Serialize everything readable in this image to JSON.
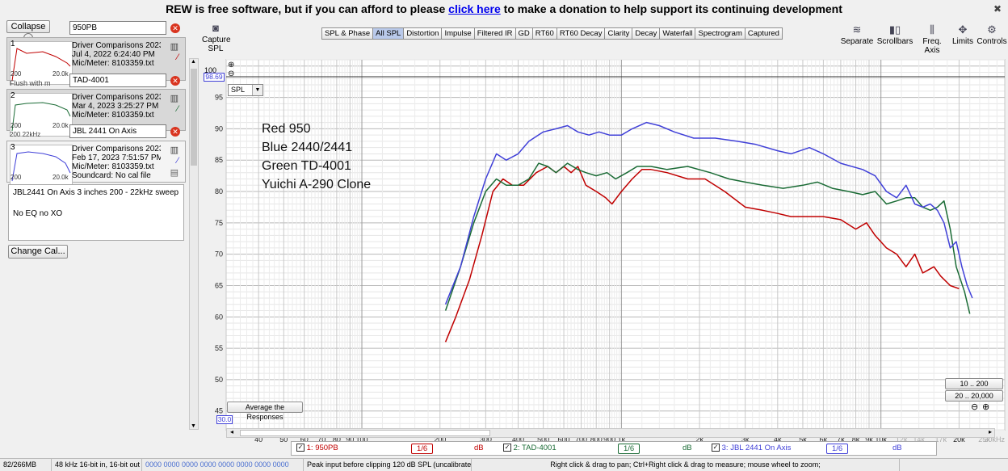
{
  "banner": {
    "prefix": "REW is free software, but if you can afford to please ",
    "link": "click here",
    "suffix": " to make a donation to help support its continuing development",
    "close": "✖"
  },
  "left": {
    "collapse_label": "Collapse",
    "collapse_icon": "«",
    "measurements": [
      {
        "num": "1",
        "name": "950PB",
        "line1": "Driver Comparisons 20230330.r",
        "line2": "Jul 4, 2022 6:24:40 PM",
        "line3": "Mic/Meter: 8103359.txt",
        "tick_lo": "200",
        "tick_hi": "20.0k",
        "color": "#c00000"
      },
      {
        "num": "2",
        "name": "TAD-4001",
        "line1": "Driver Comparisons 20230330.r",
        "line2": "Mar 4, 2023 3:25:27 PM",
        "line3": "Mic/Meter: 8103359.txt",
        "tick_lo": "200",
        "tick_hi": "20.0k",
        "color": "#1a6b35"
      },
      {
        "num": "3",
        "name": "JBL 2441 On Axis",
        "line1": "Driver Comparisons 20230330.r",
        "line2": "Feb 17, 2023 7:51:57 PM",
        "line3": "Mic/Meter: 8103359.txt",
        "line4": "Soundcard: No cal file",
        "tick_lo": "200",
        "tick_hi": "20.0k",
        "color": "#4040d8"
      }
    ],
    "hidden_peek_1": "Flush with m",
    "hidden_peek_2": "200  22kHz",
    "notes_line1": "JBL2441 On Axis 3 inches 200 - 22kHz sweep",
    "notes_line2": "No EQ no XO",
    "change_cal": "Change Cal..."
  },
  "toolbar": {
    "capture_label": "Capture",
    "spl_label": "SPL",
    "tabs": [
      "SPL & Phase",
      "All SPL",
      "Distortion",
      "Impulse",
      "Filtered IR",
      "GD",
      "RT60",
      "RT60 Decay",
      "Clarity",
      "Decay",
      "Waterfall",
      "Spectrogram",
      "Captured"
    ],
    "active_tab": "All SPL",
    "right_buttons": [
      "Separate",
      "Scrollbars",
      "Freq. Axis",
      "Limits",
      "Controls"
    ]
  },
  "plot": {
    "y_top_label": "100",
    "cursor_value": "98.69",
    "mode_select": "SPL",
    "average_btn": "Average the Responses",
    "x_start_box": "30.0",
    "range_btn_1": "10 .. 200",
    "range_btn_2": "20 .. 20,000",
    "annotation": [
      "Red 950",
      "Blue 2440/2441",
      "Green TD-4001",
      "Yuichi A-290 Clone"
    ]
  },
  "chart_data": {
    "type": "line",
    "xscale": "log",
    "xlim": [
      30,
      30000
    ],
    "ylim": [
      42,
      101
    ],
    "yticks": [
      45,
      50,
      55,
      60,
      65,
      70,
      75,
      80,
      85,
      90,
      95,
      100
    ],
    "xticks": [
      {
        "v": 40,
        "l": "40"
      },
      {
        "v": 50,
        "l": "50"
      },
      {
        "v": 60,
        "l": "60"
      },
      {
        "v": 70,
        "l": "70"
      },
      {
        "v": 80,
        "l": "80"
      },
      {
        "v": 90,
        "l": "90"
      },
      {
        "v": 100,
        "l": "100"
      },
      {
        "v": 200,
        "l": "200"
      },
      {
        "v": 300,
        "l": "300"
      },
      {
        "v": 400,
        "l": "400"
      },
      {
        "v": 500,
        "l": "500"
      },
      {
        "v": 600,
        "l": "600"
      },
      {
        "v": 700,
        "l": "700"
      },
      {
        "v": 800,
        "l": "800"
      },
      {
        "v": 900,
        "l": "900"
      },
      {
        "v": 1000,
        "l": "1k"
      },
      {
        "v": 2000,
        "l": "2k"
      },
      {
        "v": 3000,
        "l": "3k"
      },
      {
        "v": 4000,
        "l": "4k"
      },
      {
        "v": 5000,
        "l": "5k"
      },
      {
        "v": 6000,
        "l": "6k"
      },
      {
        "v": 7000,
        "l": "7k"
      },
      {
        "v": 8000,
        "l": "8k"
      },
      {
        "v": 9000,
        "l": "9k"
      },
      {
        "v": 10000,
        "l": "10k"
      },
      {
        "v": 12000,
        "l": "12k"
      },
      {
        "v": 14000,
        "l": "14k"
      },
      {
        "v": 17000,
        "l": "17k"
      },
      {
        "v": 20000,
        "l": "20k"
      },
      {
        "v": 25000,
        "l": "25k"
      },
      {
        "v": 30000,
        "l": "30kHz"
      }
    ],
    "series": [
      {
        "name": "950PB",
        "color": "#c00000",
        "points": [
          [
            210,
            56
          ],
          [
            230,
            60
          ],
          [
            260,
            66
          ],
          [
            290,
            73
          ],
          [
            320,
            80
          ],
          [
            350,
            82
          ],
          [
            380,
            81
          ],
          [
            420,
            81
          ],
          [
            470,
            83
          ],
          [
            520,
            84
          ],
          [
            560,
            83
          ],
          [
            600,
            84
          ],
          [
            640,
            83
          ],
          [
            680,
            84
          ],
          [
            730,
            81
          ],
          [
            800,
            80
          ],
          [
            870,
            79
          ],
          [
            920,
            78
          ],
          [
            1000,
            80
          ],
          [
            1100,
            82
          ],
          [
            1200,
            83.5
          ],
          [
            1300,
            83.5
          ],
          [
            1500,
            83
          ],
          [
            1800,
            82
          ],
          [
            2100,
            82
          ],
          [
            2500,
            80
          ],
          [
            3000,
            77.5
          ],
          [
            3500,
            77
          ],
          [
            4000,
            76.5
          ],
          [
            4500,
            76
          ],
          [
            5000,
            76
          ],
          [
            6000,
            76
          ],
          [
            7000,
            75.5
          ],
          [
            8000,
            74
          ],
          [
            8800,
            75
          ],
          [
            9500,
            73
          ],
          [
            10500,
            71
          ],
          [
            11500,
            70
          ],
          [
            12500,
            68
          ],
          [
            13500,
            70
          ],
          [
            14500,
            67
          ],
          [
            16000,
            68
          ],
          [
            17000,
            66.5
          ],
          [
            18500,
            65
          ],
          [
            20000,
            64.5
          ]
        ]
      },
      {
        "name": "TAD-4001",
        "color": "#1a6b35",
        "points": [
          [
            210,
            61
          ],
          [
            240,
            68
          ],
          [
            270,
            75
          ],
          [
            300,
            80
          ],
          [
            330,
            82
          ],
          [
            360,
            81
          ],
          [
            400,
            81
          ],
          [
            440,
            82
          ],
          [
            480,
            84.5
          ],
          [
            520,
            84
          ],
          [
            560,
            83
          ],
          [
            620,
            84.5
          ],
          [
            680,
            83.5
          ],
          [
            730,
            83
          ],
          [
            800,
            82.5
          ],
          [
            880,
            83
          ],
          [
            950,
            82
          ],
          [
            1050,
            83
          ],
          [
            1150,
            84
          ],
          [
            1300,
            84
          ],
          [
            1500,
            83.5
          ],
          [
            1800,
            84
          ],
          [
            2200,
            83
          ],
          [
            2600,
            82
          ],
          [
            3000,
            81.5
          ],
          [
            3500,
            81
          ],
          [
            4200,
            80.5
          ],
          [
            5000,
            81
          ],
          [
            5700,
            81.5
          ],
          [
            6500,
            80.5
          ],
          [
            7500,
            80
          ],
          [
            8500,
            79.5
          ],
          [
            9500,
            80
          ],
          [
            10500,
            78
          ],
          [
            11500,
            78.5
          ],
          [
            12500,
            79
          ],
          [
            13500,
            79
          ],
          [
            14500,
            77.5
          ],
          [
            15500,
            77
          ],
          [
            16500,
            77.5
          ],
          [
            17500,
            78.5
          ],
          [
            18500,
            74
          ],
          [
            19500,
            68
          ],
          [
            21000,
            64
          ],
          [
            22000,
            60.5
          ]
        ]
      },
      {
        "name": "JBL 2441 On Axis",
        "color": "#4040d8",
        "points": [
          [
            210,
            62
          ],
          [
            240,
            68
          ],
          [
            270,
            76
          ],
          [
            300,
            82
          ],
          [
            330,
            86
          ],
          [
            360,
            85
          ],
          [
            400,
            86
          ],
          [
            440,
            88
          ],
          [
            500,
            89.5
          ],
          [
            560,
            90
          ],
          [
            620,
            90.5
          ],
          [
            680,
            89.5
          ],
          [
            750,
            89
          ],
          [
            820,
            89.5
          ],
          [
            900,
            89
          ],
          [
            1000,
            89
          ],
          [
            1100,
            90
          ],
          [
            1250,
            91
          ],
          [
            1400,
            90.5
          ],
          [
            1600,
            89.5
          ],
          [
            1900,
            88.5
          ],
          [
            2300,
            88.5
          ],
          [
            2800,
            88
          ],
          [
            3300,
            87.5
          ],
          [
            4000,
            86.5
          ],
          [
            4500,
            86
          ],
          [
            5300,
            87
          ],
          [
            6000,
            86
          ],
          [
            7000,
            84.5
          ],
          [
            8500,
            83.5
          ],
          [
            9500,
            82.5
          ],
          [
            10500,
            80
          ],
          [
            11500,
            79
          ],
          [
            12500,
            81
          ],
          [
            13500,
            78
          ],
          [
            14500,
            77.5
          ],
          [
            15500,
            78
          ],
          [
            16500,
            77
          ],
          [
            17500,
            75
          ],
          [
            18500,
            71
          ],
          [
            19500,
            72
          ],
          [
            20500,
            68
          ],
          [
            21500,
            65
          ],
          [
            22500,
            63
          ]
        ]
      }
    ]
  },
  "legend": {
    "items": [
      {
        "label": "1: 950PB",
        "smooth": "1/6",
        "unit": "dB",
        "color": "#c00000"
      },
      {
        "label": "2: TAD-4001",
        "smooth": "1/6",
        "unit": "dB",
        "color": "#1a6b35"
      },
      {
        "label": "3: JBL 2441 On Axis",
        "smooth": "1/6",
        "unit": "dB",
        "color": "#4040d8"
      }
    ]
  },
  "status": {
    "memory": "82/266MB",
    "format": "48 kHz  16-bit in, 16-bit out",
    "levels": "0000 0000  0000 0000  0000 0000  0000 0000",
    "peak": "Peak input before clipping 120 dB SPL (uncalibrated)",
    "hint": "Right click & drag to pan; Ctrl+Right click & drag to measure; mouse wheel to zoom;"
  }
}
